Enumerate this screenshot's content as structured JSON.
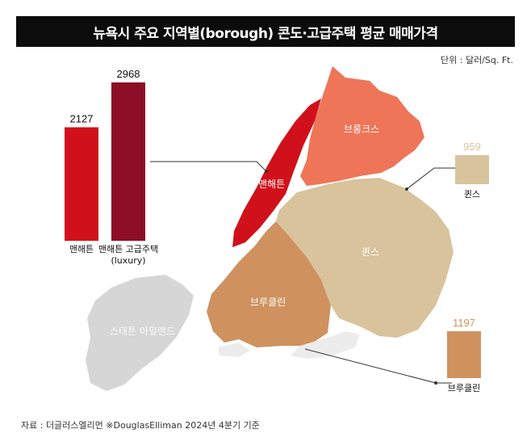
{
  "title": "뉴욕시 주요 지역별(borough) 콘도·고급주택 평균 매매가격",
  "unit": "단위 : 달러/Sq. Ft.",
  "source": "자료 : 더글러스엘리먼 ※DouglasElliman 2024년 4분기 기준",
  "colors": {
    "manhattan": "#d0111b",
    "luxury": "#8c0f27",
    "bronx": "#ee7558",
    "queens": "#d8c39c",
    "brooklyn": "#cf925f",
    "staten": "#d6d6d6"
  },
  "map_labels": {
    "manhattan": "맨해튼",
    "bronx": "브롱크스",
    "queens": "퀸스",
    "brooklyn": "브루클린",
    "staten": "스태튼 아일랜드"
  },
  "chart_data": {
    "type": "bar",
    "unit": "달러/Sq. Ft.",
    "categories": [
      "맨해튼",
      "맨해튼 고급주택 (luxury)",
      "퀸스",
      "브루클린"
    ],
    "values": [
      2127,
      2968,
      959,
      1197
    ],
    "bars": [
      {
        "label_lines": [
          "맨해튼"
        ],
        "value": 2127,
        "color_key": "manhattan"
      },
      {
        "label_lines": [
          "맨해튼 고급주택",
          "(luxury)"
        ],
        "value": 2968,
        "color_key": "luxury"
      },
      {
        "label_lines": [
          "퀸스"
        ],
        "value": 959,
        "color_key": "queens"
      },
      {
        "label_lines": [
          "브루클린"
        ],
        "value": 1197,
        "color_key": "brooklyn"
      }
    ]
  }
}
